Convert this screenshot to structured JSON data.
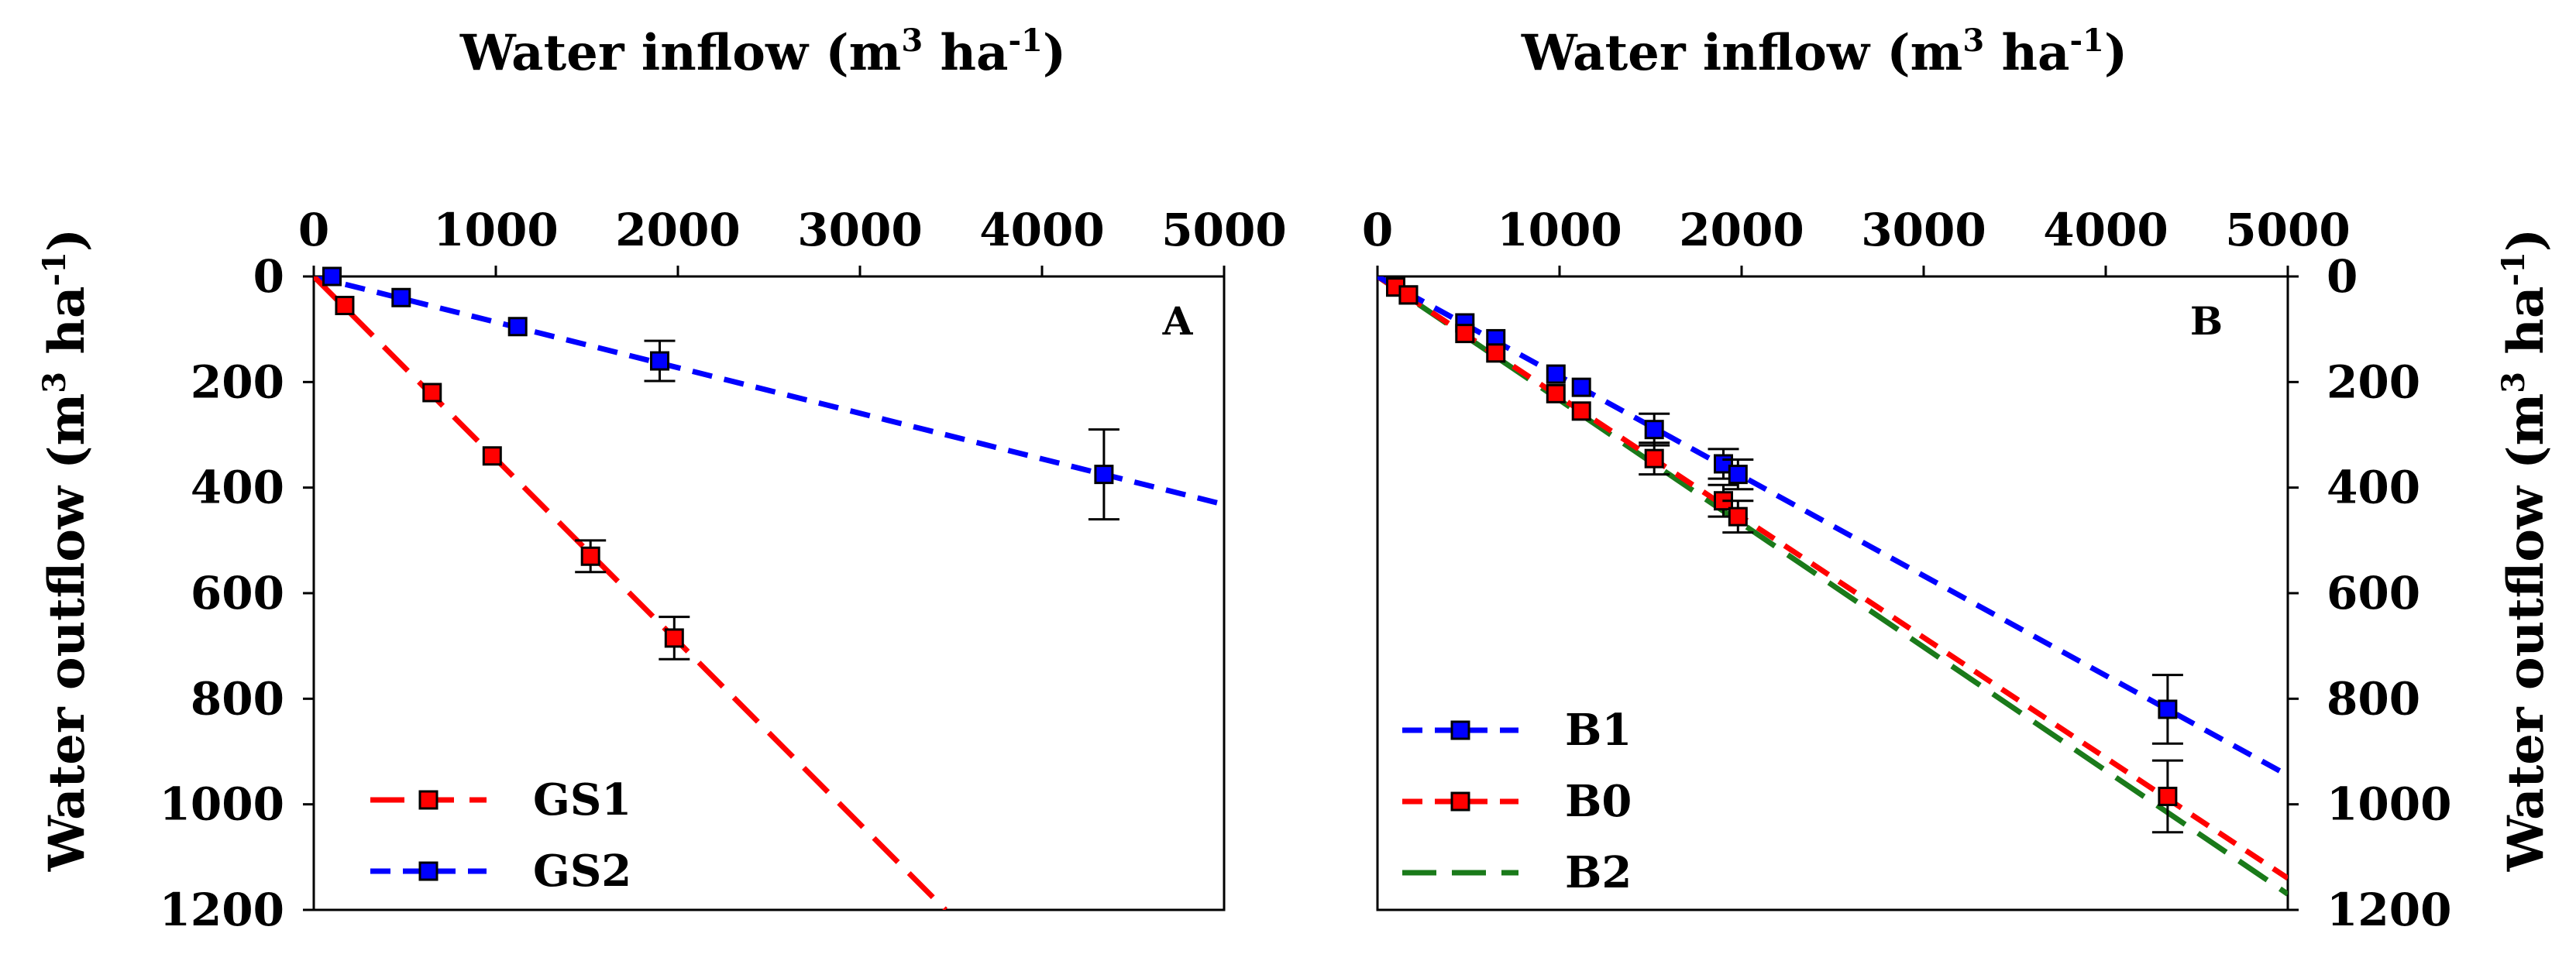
{
  "chart_data": [
    {
      "id": "A",
      "type": "line",
      "panel_label": "A",
      "x_title": "Water inflow (m",
      "x_title_sup1": "3",
      "x_title_mid": " ha",
      "x_title_sup2": "-1",
      "x_title_end": ")",
      "y_title": "Water outflow (m",
      "y_title_sup1": "3",
      "y_title_mid": " ha",
      "y_title_sup2": "-1",
      "y_title_end": ")",
      "x_axis_position": "top",
      "y_axis_position": "left",
      "y_inverted": true,
      "xlim": [
        0,
        5000
      ],
      "ylim": [
        0,
        1200
      ],
      "x_ticks": [
        "0",
        "1000",
        "2000",
        "3000",
        "4000",
        "5000"
      ],
      "y_ticks": [
        "0",
        "200",
        "400",
        "600",
        "800",
        "1000",
        "1200"
      ],
      "legend_position": "bottom-left",
      "series": [
        {
          "name": "GS1",
          "color": "#ff0000",
          "dash": "long",
          "fit": [
            [
              0,
              0
            ],
            [
              3470,
              1200
            ]
          ],
          "points": [
            {
              "x": 100,
              "y": 0,
              "err": 0
            },
            {
              "x": 170,
              "y": 55,
              "err": 0
            },
            {
              "x": 650,
              "y": 220,
              "err": 0
            },
            {
              "x": 980,
              "y": 340,
              "err": 0
            },
            {
              "x": 1520,
              "y": 530,
              "err": 30
            },
            {
              "x": 1980,
              "y": 685,
              "err": 40
            }
          ]
        },
        {
          "name": "GS2",
          "color": "#0000ff",
          "dash": "short",
          "fit": [
            [
              0,
              0
            ],
            [
              5000,
              432
            ]
          ],
          "points": [
            {
              "x": 100,
              "y": 0,
              "err": 0
            },
            {
              "x": 480,
              "y": 40,
              "err": 0
            },
            {
              "x": 1120,
              "y": 95,
              "err": 0
            },
            {
              "x": 1900,
              "y": 160,
              "err": 38
            },
            {
              "x": 4340,
              "y": 375,
              "err": 85
            }
          ]
        }
      ]
    },
    {
      "id": "B",
      "type": "line",
      "panel_label": "B",
      "x_title": "Water inflow (m",
      "x_title_sup1": "3",
      "x_title_mid": " ha",
      "x_title_sup2": "-1",
      "x_title_end": ")",
      "y_title": "Water outflow (m",
      "y_title_sup1": "3",
      "y_title_mid": " ha",
      "y_title_sup2": "-1",
      "y_title_end": ")",
      "x_axis_position": "top",
      "y_axis_position": "right",
      "y_inverted": true,
      "xlim": [
        0,
        5000
      ],
      "ylim": [
        0,
        1200
      ],
      "x_ticks": [
        "0",
        "1000",
        "2000",
        "3000",
        "4000",
        "5000"
      ],
      "y_ticks": [
        "0",
        "200",
        "400",
        "600",
        "800",
        "1000",
        "1200"
      ],
      "legend_position": "bottom-left",
      "series": [
        {
          "name": "B1",
          "color": "#0000ff",
          "dash": "short",
          "fit": [
            [
              0,
              0
            ],
            [
              5000,
              945
            ]
          ],
          "points": [
            {
              "x": 100,
              "y": 20,
              "err": 0
            },
            {
              "x": 170,
              "y": 35,
              "err": 0
            },
            {
              "x": 480,
              "y": 88,
              "err": 0
            },
            {
              "x": 650,
              "y": 118,
              "err": 0
            },
            {
              "x": 980,
              "y": 185,
              "err": 0
            },
            {
              "x": 1120,
              "y": 210,
              "err": 0
            },
            {
              "x": 1520,
              "y": 290,
              "err": 30
            },
            {
              "x": 1900,
              "y": 355,
              "err": 28
            },
            {
              "x": 1980,
              "y": 375,
              "err": 28
            },
            {
              "x": 4340,
              "y": 820,
              "err": 65
            }
          ]
        },
        {
          "name": "B0",
          "color": "#ff0000",
          "dash": "short",
          "fit": [
            [
              0,
              0
            ],
            [
              5000,
              1140
            ]
          ],
          "points": [
            {
              "x": 100,
              "y": 20,
              "err": 0
            },
            {
              "x": 170,
              "y": 35,
              "err": 0
            },
            {
              "x": 480,
              "y": 108,
              "err": 0
            },
            {
              "x": 650,
              "y": 145,
              "err": 0
            },
            {
              "x": 980,
              "y": 222,
              "err": 0
            },
            {
              "x": 1120,
              "y": 255,
              "err": 0
            },
            {
              "x": 1520,
              "y": 345,
              "err": 30
            },
            {
              "x": 1900,
              "y": 425,
              "err": 30
            },
            {
              "x": 1980,
              "y": 455,
              "err": 30
            },
            {
              "x": 4340,
              "y": 985,
              "err": 68
            }
          ]
        },
        {
          "name": "B2",
          "color": "#1a7a1a",
          "dash": "long",
          "fit": [
            [
              0,
              0
            ],
            [
              5000,
              1170
            ]
          ],
          "points": []
        }
      ]
    }
  ]
}
